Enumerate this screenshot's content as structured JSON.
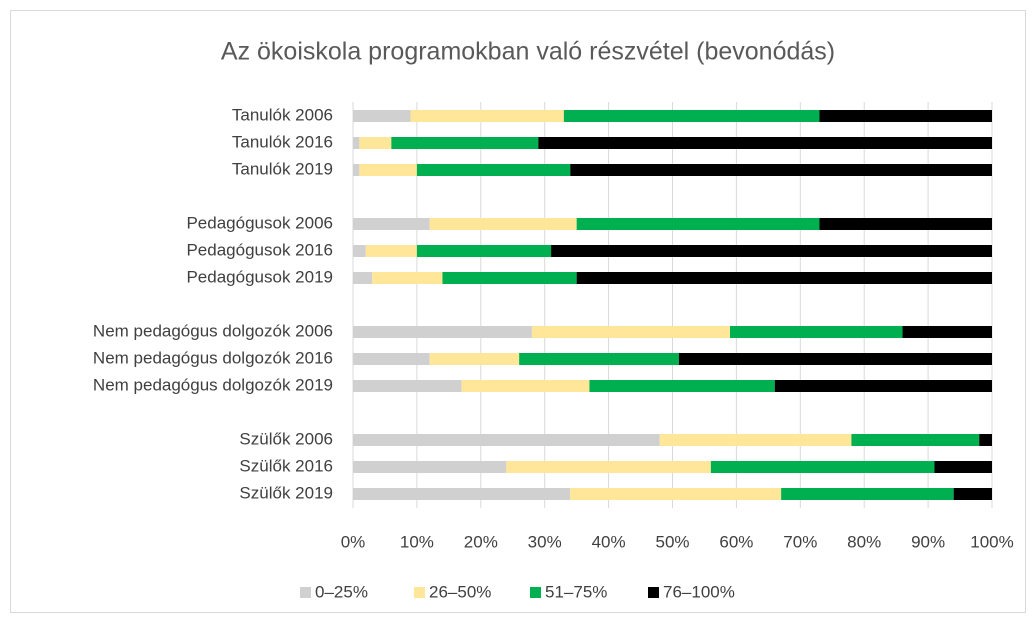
{
  "chart_data": {
    "type": "stacked_barh",
    "title": "Az ökoiskola programokban való részvétel (bevonódás)",
    "categories": [
      "Tanulók 2006",
      "Tanulók 2016",
      "Tanulók 2019",
      null,
      "Pedagógusok 2006",
      "Pedagógusok 2016",
      "Pedagógusok 2019",
      null,
      "Nem pedagógus dolgozók 2006",
      "Nem pedagógus dolgozók 2016",
      "Nem pedagógus dolgozók 2019",
      null,
      "Szülők 2006",
      "Szülők 2016",
      "Szülők 2019"
    ],
    "series": [
      {
        "name": "0–25%",
        "color": "#d0d0d0",
        "values": [
          9,
          1,
          1,
          null,
          12,
          2,
          3,
          null,
          28,
          12,
          17,
          null,
          48,
          24,
          34
        ]
      },
      {
        "name": "26–50%",
        "color": "#ffe699",
        "values": [
          24,
          5,
          9,
          null,
          23,
          8,
          11,
          null,
          31,
          14,
          20,
          null,
          30,
          32,
          33
        ]
      },
      {
        "name": "51–75%",
        "color": "#00b050",
        "values": [
          40,
          23,
          24,
          null,
          38,
          21,
          21,
          null,
          27,
          25,
          29,
          null,
          20,
          35,
          27
        ]
      },
      {
        "name": "76–100%",
        "color": "#000000",
        "values": [
          27,
          71,
          66,
          null,
          27,
          69,
          65,
          null,
          14,
          49,
          34,
          null,
          2,
          9,
          6
        ]
      }
    ],
    "xlim": [
      0,
      100
    ],
    "xticks": [
      {
        "value": 0,
        "label": "0%"
      },
      {
        "value": 10,
        "label": "10%"
      },
      {
        "value": 20,
        "label": "20%"
      },
      {
        "value": 30,
        "label": "30%"
      },
      {
        "value": 40,
        "label": "40%"
      },
      {
        "value": 50,
        "label": "50%"
      },
      {
        "value": 60,
        "label": "60%"
      },
      {
        "value": 70,
        "label": "70%"
      },
      {
        "value": 80,
        "label": "80%"
      },
      {
        "value": 90,
        "label": "90%"
      },
      {
        "value": 100,
        "label": "100%"
      }
    ],
    "grid": true,
    "legend": "bottom"
  }
}
